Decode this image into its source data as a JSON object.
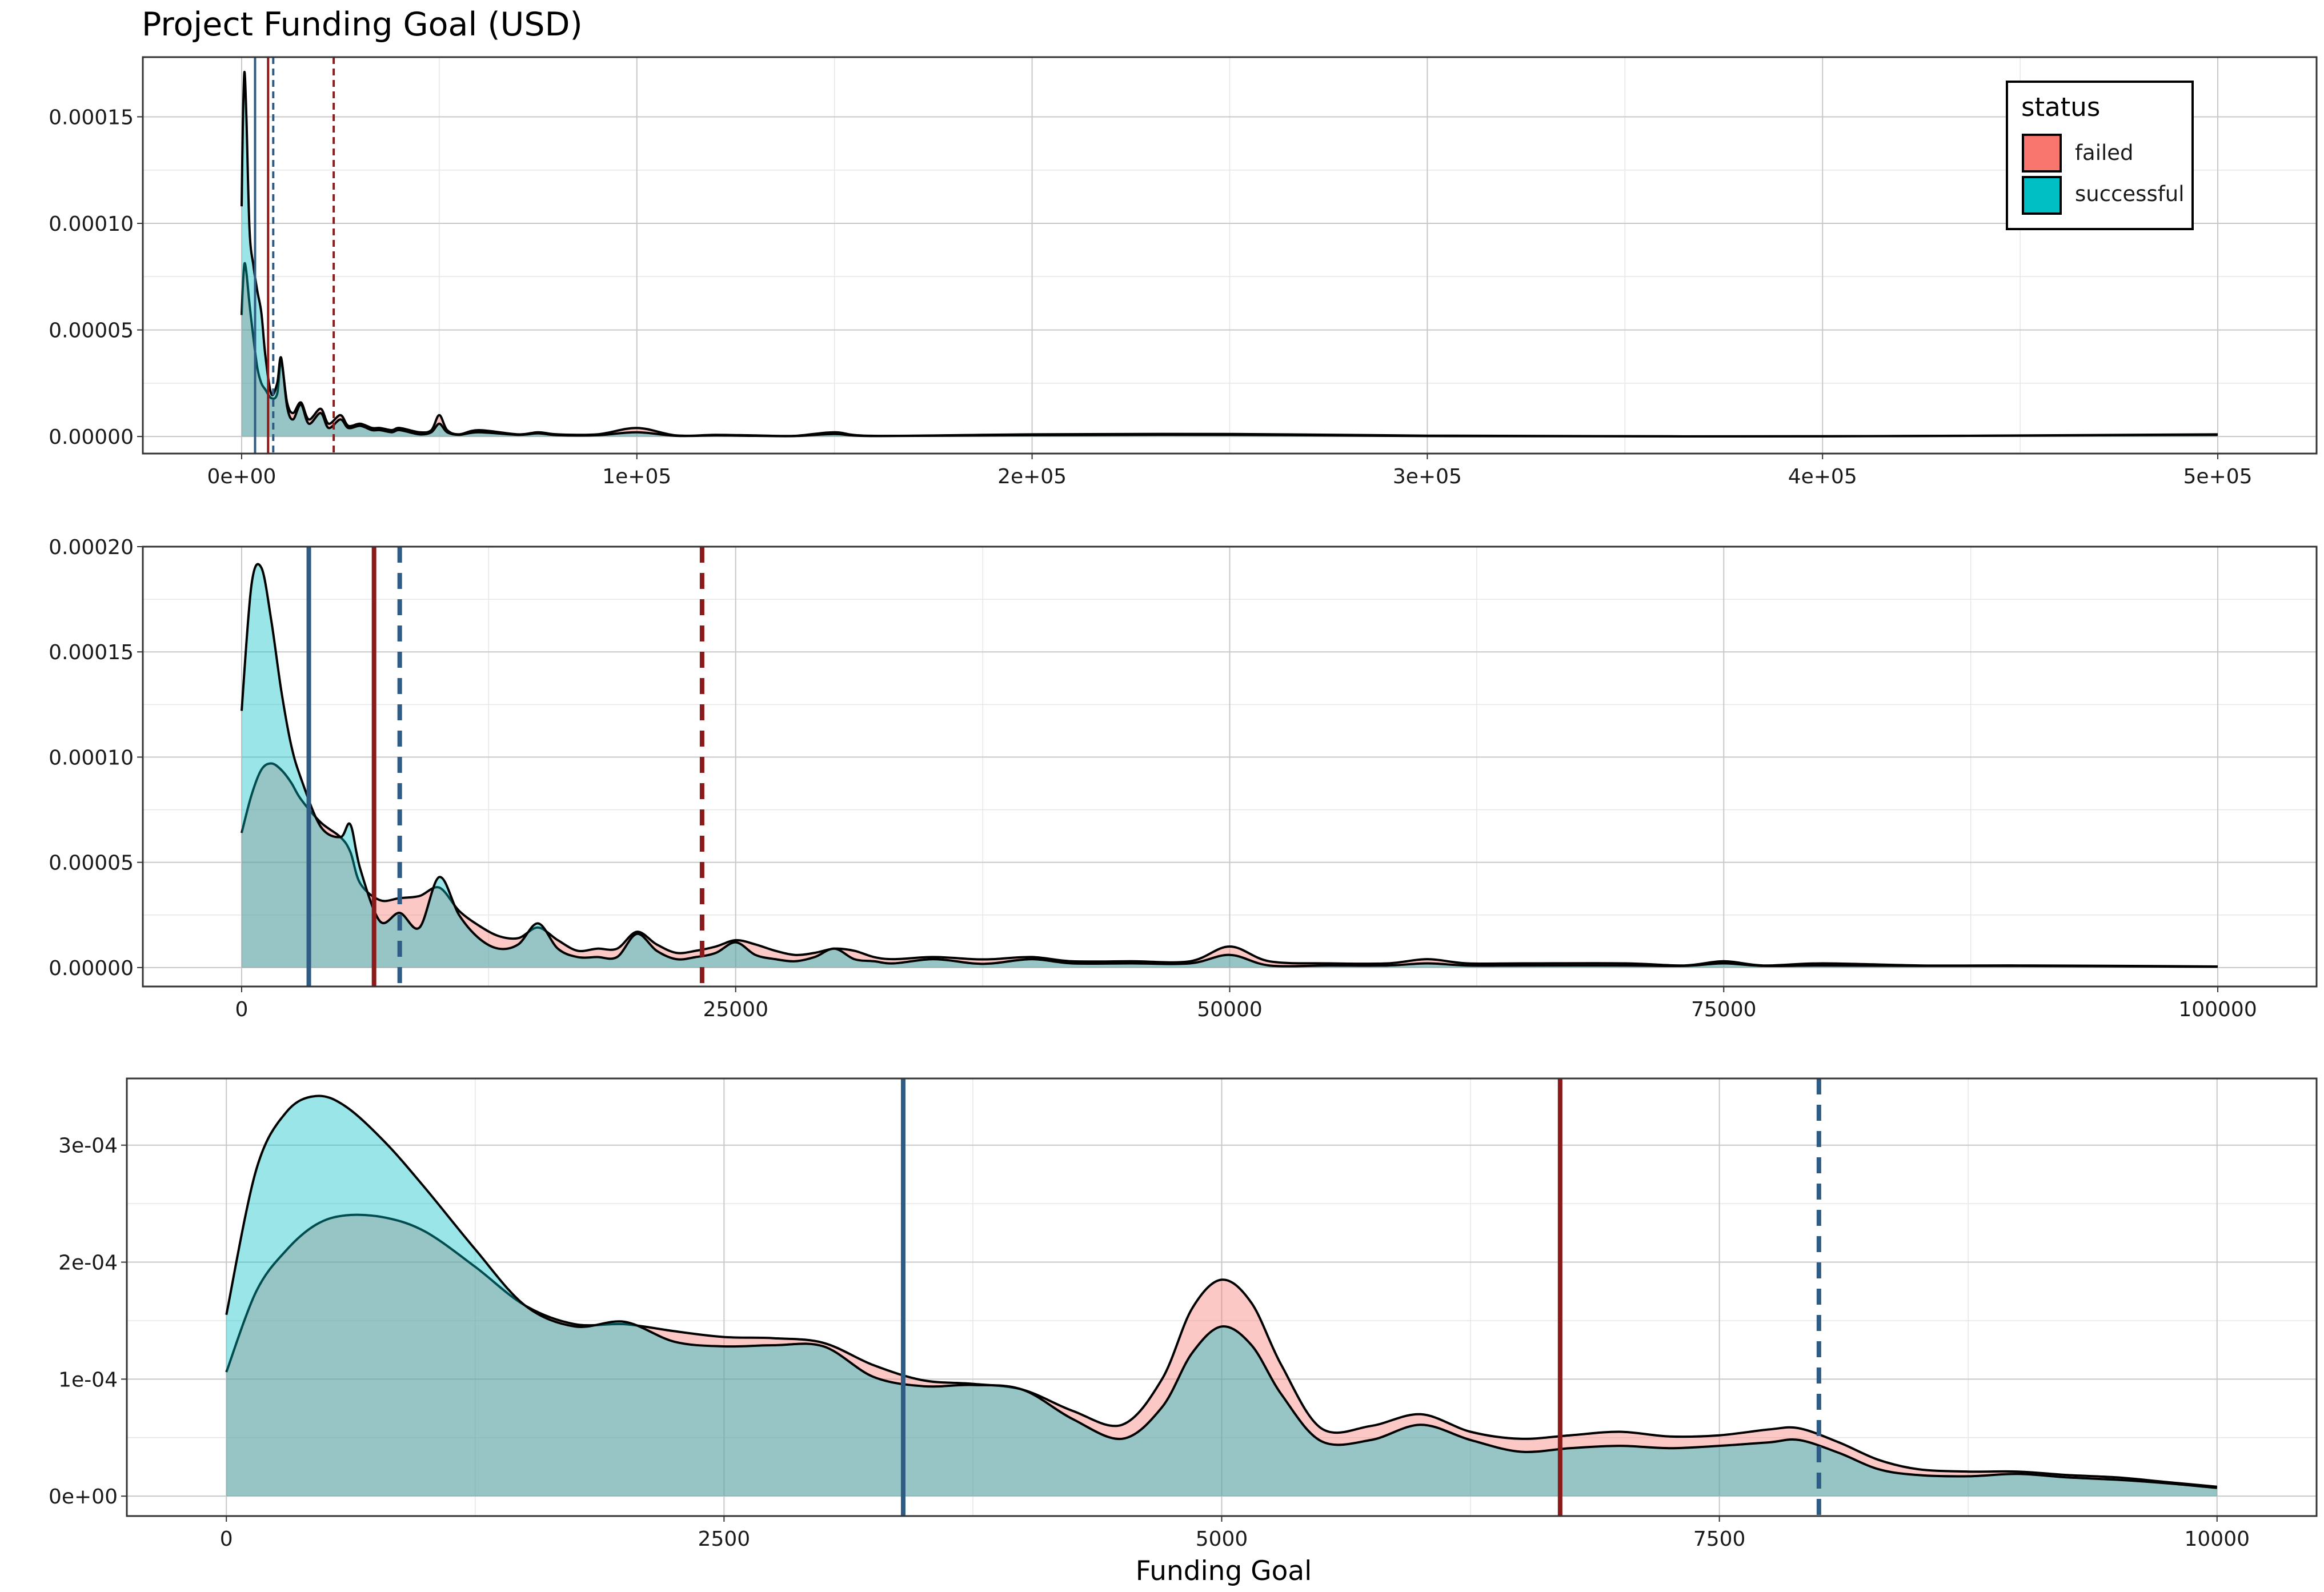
{
  "title": "Project Funding Goal (USD)",
  "xlabel": "Funding Goal",
  "colors": {
    "failed_fill": "#F8766D",
    "successful_fill": "#00BFC4",
    "failed_line": "#8B1A1A",
    "successful_line": "#2F5C85",
    "curve": "#000000",
    "grid_major": "#c8c8c8",
    "grid_minor": "#e6e6e6"
  },
  "legend": {
    "title": "status",
    "placement": "top-right of first panel",
    "items": [
      {
        "label": "failed",
        "color": "#F8766D"
      },
      {
        "label": "successful",
        "color": "#00BFC4"
      }
    ]
  },
  "chart_data": [
    {
      "type": "area",
      "panel": "full range",
      "xlim": [
        -25000,
        525000
      ],
      "ylim": [
        -8e-06,
        0.000178
      ],
      "xticks": [
        0,
        100000,
        200000,
        300000,
        400000,
        500000
      ],
      "xtick_labels": [
        "0e+00",
        "1e+05",
        "2e+05",
        "3e+05",
        "4e+05",
        "5e+05"
      ],
      "yticks": [
        0,
        5e-05,
        0.0001,
        0.00015
      ],
      "ytick_labels": [
        "0.00000",
        "0.00005",
        "0.00010",
        "0.00015"
      ],
      "grid": true,
      "series": [
        {
          "name": "failed",
          "x": [
            0,
            300,
            700,
            1200,
            2000,
            3000,
            4000,
            5000,
            6000,
            7500,
            9000,
            10000,
            11500,
            13000,
            15000,
            17000,
            20000,
            22000,
            25000,
            27000,
            30000,
            33000,
            35000,
            38000,
            40000,
            45000,
            48000,
            50000,
            52000,
            55000,
            60000,
            70000,
            75000,
            80000,
            90000,
            100000,
            110000,
            120000,
            130000,
            140000,
            150000,
            160000,
            200000,
            250000,
            300000,
            400000,
            500000
          ],
          "y": [
            5.7e-05,
            7e-05,
            8.1e-05,
            7.7e-05,
            6.2e-05,
            4.6e-05,
            3.2e-05,
            2.5e-05,
            2.2e-05,
            1.8e-05,
            2e-05,
            3.5e-05,
            1.6e-05,
            1.1e-05,
            1.6e-05,
            8e-06,
            1.3e-05,
            6e-06,
            1e-05,
            5e-06,
            6e-06,
            4e-06,
            4e-06,
            3e-06,
            4e-06,
            2e-06,
            3e-06,
            1e-05,
            3e-06,
            1e-06,
            3e-06,
            1e-06,
            2e-06,
            1e-06,
            1e-06,
            4e-06,
            5e-07,
            8e-07,
            5e-07,
            3e-07,
            2e-06,
            3e-07,
            1e-06,
            1.2e-06,
            4e-07,
            1e-07,
            1e-06
          ]
        },
        {
          "name": "successful",
          "x": [
            0,
            300,
            700,
            1200,
            2000,
            3000,
            4000,
            5000,
            6000,
            7500,
            9000,
            10000,
            11500,
            13000,
            15000,
            17000,
            20000,
            22000,
            25000,
            27000,
            30000,
            33000,
            35000,
            38000,
            40000,
            45000,
            48000,
            50000,
            52000,
            55000,
            60000,
            70000,
            75000,
            80000,
            90000,
            100000,
            110000,
            120000,
            130000,
            140000,
            150000,
            160000,
            200000,
            250000,
            300000,
            400000,
            500000
          ],
          "y": [
            0.000108,
            0.000145,
            0.000171,
            0.00015,
            9.7e-05,
            8e-05,
            6.8e-05,
            5.8e-05,
            3.8e-05,
            2e-05,
            2.5e-05,
            3.7e-05,
            1.4e-05,
            8e-06,
            1.5e-05,
            6e-06,
            1.1e-05,
            4e-06,
            8e-06,
            4e-06,
            5e-06,
            3e-06,
            3e-06,
            2e-06,
            3e-06,
            1e-06,
            2e-06,
            6e-06,
            2e-06,
            8e-07,
            2e-06,
            8e-07,
            1.5e-06,
            6e-07,
            6e-07,
            2e-06,
            3e-07,
            5e-07,
            3e-07,
            2e-07,
            1.2e-06,
            2e-07,
            6e-07,
            8e-07,
            2e-07,
            1e-07,
            8e-07
          ]
        }
      ],
      "vlines": [
        {
          "series": "successful",
          "stat": "median",
          "x": 3400,
          "style": "solid"
        },
        {
          "series": "failed",
          "stat": "median",
          "x": 6700,
          "style": "solid"
        },
        {
          "series": "successful",
          "stat": "mean",
          "x": 8000,
          "style": "dashed"
        },
        {
          "series": "failed",
          "stat": "mean",
          "x": 23300,
          "style": "dashed"
        }
      ]
    },
    {
      "type": "area",
      "panel": "0 to 100000",
      "xlim": [
        -5000,
        105000
      ],
      "ylim": [
        -9e-06,
        0.0002
      ],
      "xticks": [
        0,
        25000,
        50000,
        75000,
        100000
      ],
      "xtick_labels": [
        "0",
        "25000",
        "50000",
        "75000",
        "100000"
      ],
      "yticks": [
        0,
        5e-05,
        0.0001,
        0.00015,
        0.0002
      ],
      "ytick_labels": [
        "0.00000",
        "0.00005",
        "0.00010",
        "0.00015",
        "0.00020"
      ],
      "grid": true,
      "series": [
        {
          "name": "failed",
          "x": [
            0,
            500,
            1000,
            1500,
            2000,
            2500,
            3000,
            4000,
            5000,
            5500,
            6000,
            7000,
            8000,
            9000,
            10000,
            11000,
            12000,
            13000,
            14000,
            15000,
            16000,
            17000,
            18000,
            19000,
            20000,
            21000,
            22000,
            23000,
            24000,
            25000,
            26000,
            27000,
            28000,
            29000,
            30000,
            31000,
            32000,
            33000,
            35000,
            37000,
            38000,
            40000,
            42000,
            45000,
            48000,
            50000,
            52000,
            55000,
            58000,
            60000,
            62000,
            65000,
            70000,
            73000,
            75000,
            77000,
            80000,
            85000,
            90000,
            95000,
            100000
          ],
          "y": [
            6.4e-05,
            8.2e-05,
            9.4e-05,
            9.7e-05,
            9.4e-05,
            8.8e-05,
            8e-05,
            6.9e-05,
            6.2e-05,
            5.5e-05,
            4e-05,
            3.2e-05,
            3.3e-05,
            3.4e-05,
            3.8e-05,
            2.7e-05,
            2e-05,
            1.5e-05,
            1.4e-05,
            1.9e-05,
            1.3e-05,
            8e-06,
            9e-06,
            9e-06,
            1.7e-05,
            1.1e-05,
            7e-06,
            8e-06,
            1e-05,
            1.3e-05,
            1.1e-05,
            8e-06,
            6e-06,
            7e-06,
            9e-06,
            8e-06,
            5e-06,
            4e-06,
            5e-06,
            4e-06,
            4e-06,
            5e-06,
            3e-06,
            3e-06,
            3e-06,
            1e-05,
            3e-06,
            2e-06,
            2e-06,
            4e-06,
            2e-06,
            2e-06,
            2e-06,
            1e-06,
            3e-06,
            1e-06,
            2e-06,
            1e-06,
            1e-06,
            8e-07,
            5e-07
          ]
        },
        {
          "name": "successful",
          "x": [
            0,
            500,
            1000,
            1500,
            2000,
            2500,
            3000,
            4000,
            5000,
            5500,
            6000,
            7000,
            8000,
            9000,
            10000,
            11000,
            12000,
            13000,
            14000,
            15000,
            16000,
            17000,
            18000,
            19000,
            20000,
            21000,
            22000,
            23000,
            24000,
            25000,
            26000,
            27000,
            28000,
            29000,
            30000,
            31000,
            32000,
            33000,
            35000,
            37000,
            38000,
            40000,
            42000,
            45000,
            48000,
            50000,
            52000,
            55000,
            58000,
            60000,
            62000,
            65000,
            70000,
            73000,
            75000,
            77000,
            80000,
            85000,
            90000,
            95000,
            100000
          ],
          "y": [
            0.000122,
            0.000182,
            0.00019,
            0.000165,
            0.000132,
            0.000106,
            9e-05,
            6.7e-05,
            6.2e-05,
            6.8e-05,
            4.7e-05,
            2.2e-05,
            2.6e-05,
            1.9e-05,
            4.3e-05,
            2.5e-05,
            1.4e-05,
            9e-06,
            1.1e-05,
            2.1e-05,
            9e-06,
            5e-06,
            5e-06,
            5e-06,
            1.6e-05,
            8e-06,
            4e-06,
            5e-06,
            7e-06,
            1.2e-05,
            6e-06,
            4e-06,
            3e-06,
            5e-06,
            9e-06,
            4e-06,
            3e-06,
            2e-06,
            4e-06,
            2e-06,
            2e-06,
            4e-06,
            2e-06,
            2e-06,
            2e-06,
            6e-06,
            1e-06,
            1e-06,
            1e-06,
            2e-06,
            1e-06,
            1e-06,
            1e-06,
            8e-07,
            2e-06,
            8e-07,
            1e-06,
            8e-07,
            8e-07,
            6e-07,
            4e-07
          ]
        }
      ],
      "vlines": [
        {
          "series": "successful",
          "stat": "median",
          "x": 3400,
          "style": "solid"
        },
        {
          "series": "failed",
          "stat": "median",
          "x": 6700,
          "style": "solid"
        },
        {
          "series": "successful",
          "stat": "mean",
          "x": 8000,
          "style": "dashed"
        },
        {
          "series": "failed",
          "stat": "mean",
          "x": 23300,
          "style": "dashed"
        }
      ]
    },
    {
      "type": "area",
      "panel": "0 to 10000",
      "xlim": [
        -500,
        10500
      ],
      "ylim": [
        -1.7e-05,
        0.000357
      ],
      "xticks": [
        0,
        2500,
        5000,
        7500,
        10000
      ],
      "xtick_labels": [
        "0",
        "2500",
        "5000",
        "7500",
        "10000"
      ],
      "yticks": [
        0,
        0.0001,
        0.0002,
        0.0003
      ],
      "ytick_labels": [
        "0e+00",
        "1e-04",
        "2e-04",
        "3e-04"
      ],
      "grid": true,
      "series": [
        {
          "name": "failed",
          "x": [
            0,
            150,
            300,
            450,
            600,
            800,
            1000,
            1250,
            1500,
            1750,
            2000,
            2250,
            2500,
            2750,
            3000,
            3250,
            3500,
            3750,
            4000,
            4250,
            4500,
            4700,
            4850,
            5000,
            5150,
            5300,
            5500,
            5750,
            6000,
            6250,
            6500,
            6750,
            7000,
            7250,
            7500,
            7750,
            7900,
            8100,
            8300,
            8500,
            8750,
            9000,
            9250,
            9500,
            9750,
            10000
          ],
          "y": [
            0.000106,
            0.000175,
            0.00021,
            0.000232,
            0.00024,
            0.000238,
            0.000226,
            0.000196,
            0.000163,
            0.000147,
            0.000147,
            0.000141,
            0.000136,
            0.000135,
            0.000131,
            0.000112,
            9.9e-05,
            9.6e-05,
            9.1e-05,
            7.3e-05,
            6.1e-05,
            0.0001,
            0.00016,
            0.000185,
            0.000165,
            0.000112,
            5.8e-05,
            6e-05,
            7e-05,
            5.5e-05,
            4.9e-05,
            5.2e-05,
            5.5e-05,
            5.1e-05,
            5.2e-05,
            5.7e-05,
            5.8e-05,
            4.6e-05,
            3.1e-05,
            2.3e-05,
            2.1e-05,
            2.1e-05,
            1.8e-05,
            1.6e-05,
            1.2e-05,
            8e-06
          ]
        },
        {
          "name": "successful",
          "x": [
            0,
            150,
            300,
            450,
            600,
            800,
            1000,
            1250,
            1500,
            1750,
            2000,
            2250,
            2500,
            2750,
            3000,
            3250,
            3500,
            3750,
            4000,
            4250,
            4500,
            4700,
            4850,
            5000,
            5150,
            5300,
            5500,
            5750,
            6000,
            6250,
            6500,
            6750,
            7000,
            7250,
            7500,
            7750,
            7900,
            8100,
            8300,
            8500,
            8750,
            9000,
            9250,
            9500,
            9750,
            10000
          ],
          "y": [
            0.000155,
            0.000279,
            0.000328,
            0.000342,
            0.000333,
            0.000302,
            0.000263,
            0.000211,
            0.000163,
            0.000145,
            0.000149,
            0.000132,
            0.000128,
            0.000129,
            0.000128,
            0.000102,
            9.4e-05,
            9.5e-05,
            9.1e-05,
            6.6e-05,
            4.9e-05,
            7.6e-05,
            0.000122,
            0.000145,
            0.000129,
            8.7e-05,
            4.7e-05,
            4.8e-05,
            6.1e-05,
            4.8e-05,
            3.8e-05,
            4.1e-05,
            4.3e-05,
            4.1e-05,
            4.3e-05,
            4.6e-05,
            4.8e-05,
            3.7e-05,
            2.3e-05,
            1.8e-05,
            1.7e-05,
            1.9e-05,
            1.6e-05,
            1.4e-05,
            1.1e-05,
            7e-06
          ]
        }
      ],
      "vlines": [
        {
          "series": "successful",
          "stat": "median",
          "x": 3400,
          "style": "solid"
        },
        {
          "series": "failed",
          "stat": "median",
          "x": 6700,
          "style": "solid"
        },
        {
          "series": "successful",
          "stat": "mean",
          "x": 8000,
          "style": "dashed"
        }
      ]
    }
  ]
}
